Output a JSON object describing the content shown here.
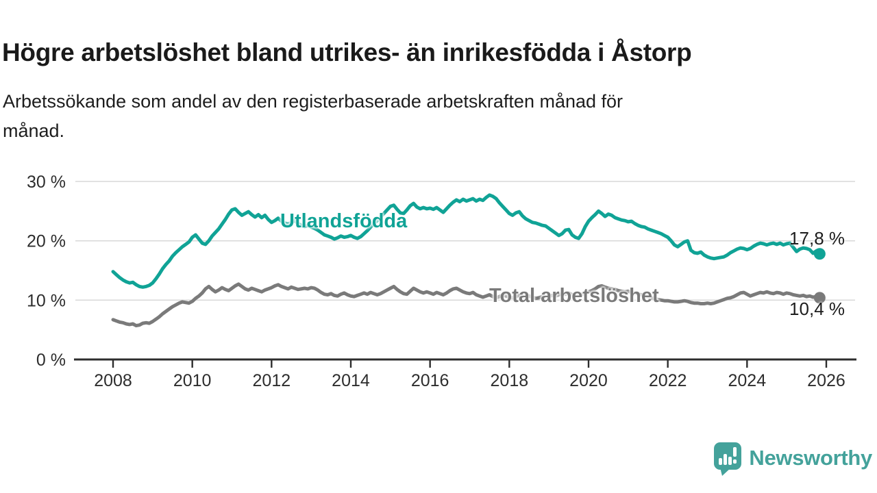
{
  "header": {
    "title": "Högre arbetslöshet bland utrikes- än inrikesfödda i Åstorp",
    "subtitle": "Arbetssökande som andel av den registerbaserade arbetskraften månad för\nmånad."
  },
  "colors": {
    "accent_teal": "#10a396",
    "series_gray": "#7a7a7a",
    "grid": "#d9d9d9",
    "axis": "#2d2d2d",
    "logo_teal": "#44a29b"
  },
  "chart_data": {
    "type": "line",
    "title": "Högre arbetslöshet bland utrikes- än inrikesfödda i Åstorp",
    "subtitle": "Arbetssökande som andel av den registerbaserade arbetskraften månad för månad.",
    "frequency": "monthly",
    "x_start": "2008-01",
    "x_end": "2025-11",
    "xlabel": "",
    "ylabel": "%",
    "ylim": [
      0,
      30
    ],
    "grid": "horizontal",
    "legend_position": "inline-labels",
    "y_tick_labels": [
      "0 %",
      "10 %",
      "20 %",
      "30 %"
    ],
    "y_tick_values": [
      0,
      10,
      20,
      30
    ],
    "x_tick_labels": [
      "2008",
      "2010",
      "2012",
      "2014",
      "2016",
      "2018",
      "2020",
      "2022",
      "2024",
      "2026"
    ],
    "x_tick_years": [
      2008,
      2010,
      2012,
      2014,
      2016,
      2018,
      2020,
      2022,
      2024,
      2026
    ],
    "series": [
      {
        "name": "Utlandsfödda",
        "color": "#10a396",
        "end_label": "17,8 %",
        "end_value": 17.8,
        "values": [
          14.8,
          14.3,
          13.8,
          13.4,
          13.1,
          12.9,
          13.0,
          12.6,
          12.3,
          12.2,
          12.3,
          12.5,
          12.9,
          13.6,
          14.4,
          15.3,
          16.0,
          16.6,
          17.4,
          18.0,
          18.5,
          19.0,
          19.4,
          19.8,
          20.6,
          21.0,
          20.3,
          19.6,
          19.4,
          20.0,
          20.8,
          21.4,
          22.0,
          22.8,
          23.6,
          24.5,
          25.2,
          25.4,
          24.8,
          24.3,
          24.6,
          24.9,
          24.4,
          24.0,
          24.4,
          23.9,
          24.3,
          23.6,
          23.1,
          23.4,
          23.8,
          23.3,
          23.0,
          22.8,
          23.1,
          23.4,
          22.9,
          22.6,
          22.4,
          22.6,
          22.3,
          22.1,
          21.8,
          21.4,
          21.0,
          20.8,
          20.6,
          20.3,
          20.5,
          20.8,
          20.6,
          20.7,
          20.9,
          20.6,
          20.4,
          20.7,
          21.2,
          21.7,
          22.3,
          22.9,
          23.4,
          24.0,
          24.6,
          25.2,
          25.8,
          26.0,
          25.3,
          24.7,
          24.6,
          25.2,
          25.9,
          26.3,
          25.7,
          25.4,
          25.6,
          25.4,
          25.5,
          25.3,
          25.6,
          25.2,
          24.8,
          25.4,
          26.0,
          26.5,
          26.9,
          26.6,
          27.0,
          26.7,
          26.9,
          27.1,
          26.7,
          27.0,
          26.8,
          27.3,
          27.7,
          27.5,
          27.1,
          26.4,
          25.8,
          25.2,
          24.6,
          24.3,
          24.7,
          24.9,
          24.2,
          23.7,
          23.4,
          23.1,
          23.0,
          22.8,
          22.6,
          22.5,
          22.1,
          21.7,
          21.3,
          20.9,
          21.2,
          21.8,
          21.9,
          21.0,
          20.6,
          20.4,
          21.2,
          22.4,
          23.3,
          23.9,
          24.4,
          25.0,
          24.6,
          24.1,
          24.5,
          24.3,
          23.9,
          23.7,
          23.5,
          23.4,
          23.2,
          23.3,
          22.9,
          22.6,
          22.4,
          22.3,
          22.0,
          21.8,
          21.6,
          21.4,
          21.2,
          20.9,
          20.6,
          20.0,
          19.3,
          19.0,
          19.4,
          19.8,
          20.0,
          18.4,
          18.0,
          17.9,
          18.1,
          17.6,
          17.3,
          17.1,
          17.0,
          17.1,
          17.2,
          17.3,
          17.6,
          18.0,
          18.3,
          18.6,
          18.8,
          18.7,
          18.5,
          18.7,
          19.1,
          19.4,
          19.6,
          19.5,
          19.3,
          19.5,
          19.6,
          19.4,
          19.6,
          19.3,
          19.5,
          19.6,
          18.9,
          18.2,
          18.6,
          18.8,
          18.7,
          18.5,
          17.9,
          18.3,
          17.8
        ]
      },
      {
        "name": "Total arbetslöshet",
        "color": "#7a7a7a",
        "end_label": "10,4 %",
        "end_value": 10.4,
        "values": [
          6.7,
          6.5,
          6.3,
          6.2,
          6.0,
          5.9,
          6.0,
          5.7,
          5.8,
          6.1,
          6.2,
          6.1,
          6.4,
          6.8,
          7.2,
          7.7,
          8.1,
          8.5,
          8.9,
          9.2,
          9.5,
          9.7,
          9.6,
          9.5,
          9.8,
          10.3,
          10.7,
          11.2,
          11.9,
          12.3,
          11.8,
          11.4,
          11.7,
          12.1,
          11.8,
          11.6,
          12.0,
          12.4,
          12.7,
          12.3,
          11.9,
          11.7,
          12.0,
          11.8,
          11.6,
          11.4,
          11.7,
          11.9,
          12.1,
          12.4,
          12.6,
          12.3,
          12.1,
          11.9,
          12.2,
          12.0,
          11.8,
          11.9,
          12.0,
          11.9,
          12.1,
          12.0,
          11.7,
          11.3,
          11.0,
          10.9,
          11.1,
          10.8,
          10.7,
          11.0,
          11.2,
          10.9,
          10.7,
          10.6,
          10.8,
          11.0,
          11.2,
          11.0,
          11.3,
          11.1,
          10.9,
          11.1,
          11.4,
          11.7,
          12.0,
          12.3,
          11.8,
          11.4,
          11.1,
          11.0,
          11.5,
          12.0,
          11.7,
          11.4,
          11.2,
          11.4,
          11.2,
          11.0,
          11.3,
          11.1,
          10.9,
          11.2,
          11.6,
          11.9,
          12.0,
          11.7,
          11.4,
          11.2,
          11.1,
          11.3,
          10.9,
          10.7,
          10.5,
          10.7,
          10.9,
          10.6,
          10.4,
          10.6,
          10.8,
          10.7,
          10.5,
          10.4,
          10.6,
          10.8,
          10.6,
          10.4,
          10.7,
          10.5,
          10.3,
          10.4,
          10.6,
          10.5,
          10.6,
          10.8,
          10.7,
          10.9,
          11.1,
          11.0,
          11.2,
          10.9,
          10.8,
          10.9,
          11.0,
          11.2,
          11.4,
          11.6,
          11.9,
          12.3,
          12.4,
          12.2,
          12.0,
          11.9,
          11.8,
          11.6,
          11.5,
          11.4,
          11.5,
          11.3,
          11.2,
          11.0,
          10.9,
          10.7,
          10.6,
          10.4,
          10.3,
          10.1,
          10.0,
          9.9,
          9.9,
          9.8,
          9.7,
          9.7,
          9.8,
          9.9,
          9.8,
          9.6,
          9.5,
          9.5,
          9.4,
          9.4,
          9.5,
          9.4,
          9.5,
          9.7,
          9.9,
          10.1,
          10.3,
          10.4,
          10.6,
          10.9,
          11.2,
          11.3,
          11.0,
          10.7,
          10.9,
          11.1,
          11.3,
          11.2,
          11.4,
          11.2,
          11.1,
          11.3,
          11.2,
          11.0,
          11.2,
          11.1,
          10.9,
          10.8,
          10.7,
          10.8,
          10.6,
          10.7,
          10.5,
          10.6,
          10.4
        ]
      }
    ]
  },
  "footer": {
    "brand": "Newsworthy",
    "logo_icon": "speech-bubble-bar-chart-icon"
  }
}
